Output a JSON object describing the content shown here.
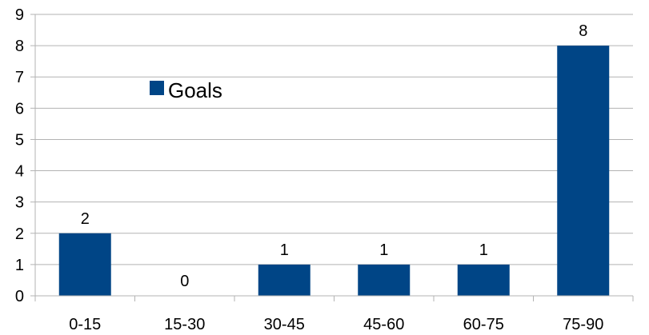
{
  "chart_data": {
    "type": "bar",
    "categories": [
      "0-15",
      "15-30",
      "30-45",
      "45-60",
      "60-75",
      "75-90"
    ],
    "series": [
      {
        "name": "Goals",
        "values": [
          2,
          0,
          1,
          1,
          1,
          8
        ],
        "color": "#004586"
      }
    ],
    "y_tick_labels": [
      "0",
      "1",
      "2",
      "3",
      "4",
      "5",
      "6",
      "7",
      "8",
      "9"
    ],
    "ylim": [
      0,
      9
    ],
    "grid": true,
    "legend": {
      "position": "upper-left-inside",
      "label": "Goals"
    },
    "data_labels": [
      "2",
      "0",
      "1",
      "1",
      "1",
      "8"
    ],
    "title": "",
    "xlabel": "",
    "ylabel": ""
  },
  "colors": {
    "bar": "#004586",
    "grid": "#b3b3b3",
    "axis": "#b3b3b3"
  }
}
